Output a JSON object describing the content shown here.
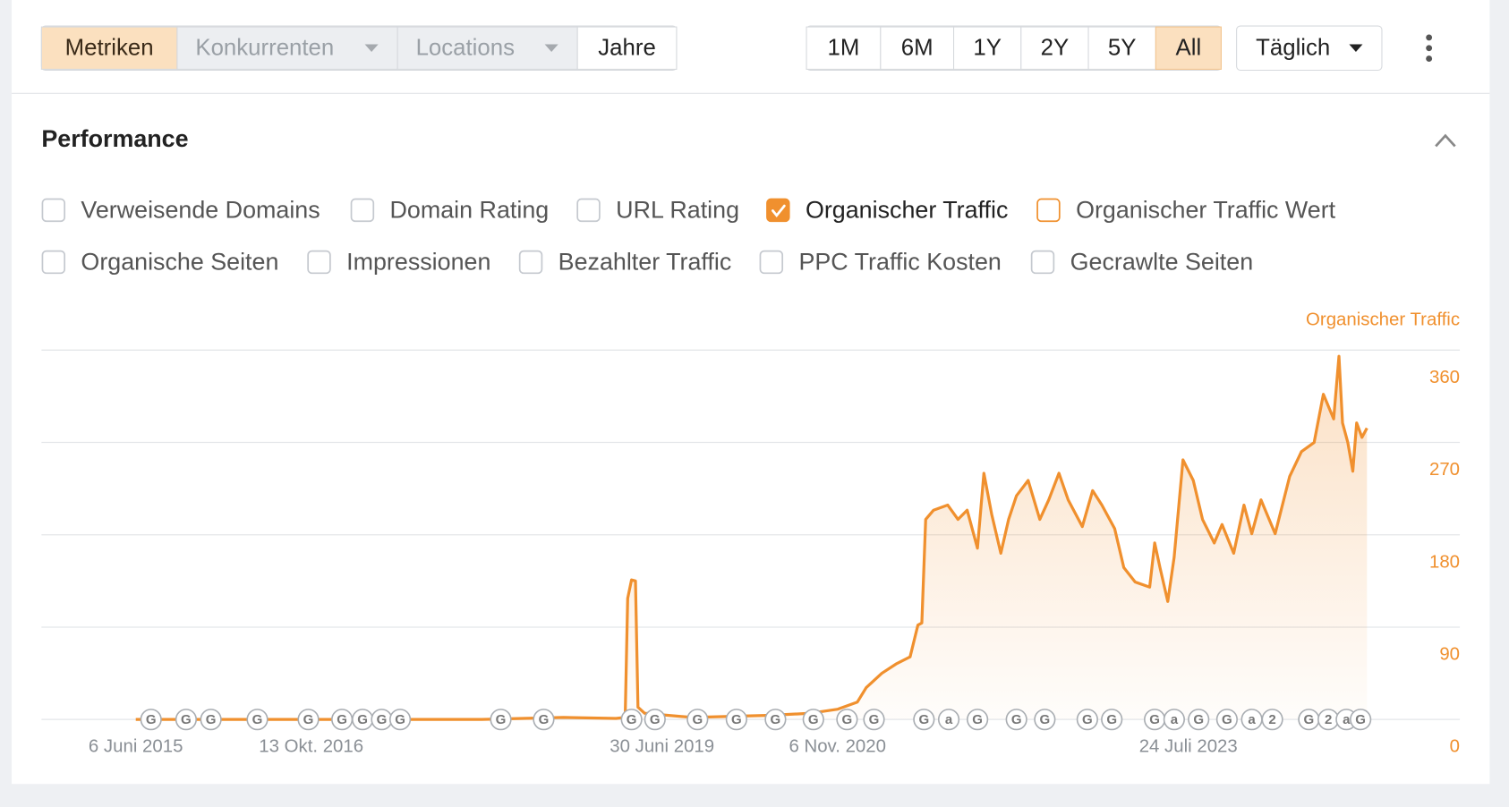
{
  "toolbar": {
    "tabs": [
      "Metriken",
      "Konkurrenten",
      "Locations",
      "Jahre"
    ],
    "ranges": [
      "1M",
      "6M",
      "1Y",
      "2Y",
      "5Y",
      "All"
    ],
    "interval": "Täglich"
  },
  "section": {
    "title": "Performance"
  },
  "metrics": [
    {
      "label": "Verweisende Domains",
      "checked": false
    },
    {
      "label": "Domain Rating",
      "checked": false
    },
    {
      "label": "URL Rating",
      "checked": false
    },
    {
      "label": "Organischer Traffic",
      "checked": true,
      "color": "#f0902e"
    },
    {
      "label": "Organischer Traffic Wert",
      "checked": false,
      "color": "#f0902e"
    },
    {
      "label": "Organische Seiten",
      "checked": false
    },
    {
      "label": "Impressionen",
      "checked": false
    },
    {
      "label": "Bezahlter Traffic",
      "checked": false
    },
    {
      "label": "PPC Traffic Kosten",
      "checked": false
    },
    {
      "label": "Gecrawlte Seiten",
      "checked": false
    }
  ],
  "chart_data": {
    "type": "line",
    "x": [
      "2015-06-06",
      "2018-02-06",
      "2018-09-24",
      "2019-02-20",
      "2019-03-18",
      "2019-03-25",
      "2019-04-05",
      "2019-04-16",
      "2019-04-23",
      "2019-05-12",
      "2019-09-24",
      "2020-05-01",
      "2020-08-19",
      "2020-11-07",
      "2021-01-01",
      "2021-01-26",
      "2021-03-11",
      "2021-04-20",
      "2021-05-30",
      "2021-06-21",
      "2021-07-02",
      "2021-07-13",
      "2021-08-04",
      "2021-09-13",
      "2021-10-12",
      "2021-11-07",
      "2021-12-06",
      "2021-12-24",
      "2022-01-15",
      "2022-02-10",
      "2022-03-04",
      "2022-03-26",
      "2022-04-28",
      "2022-05-31",
      "2022-06-25",
      "2022-07-24",
      "2022-08-19",
      "2022-09-28",
      "2022-10-27",
      "2022-11-22",
      "2022-12-28",
      "2023-01-23",
      "2023-02-24",
      "2023-04-06",
      "2023-04-20",
      "2023-05-05",
      "2023-05-27",
      "2023-06-14",
      "2023-07-09",
      "2023-08-07",
      "2023-09-02",
      "2023-10-05",
      "2023-10-27",
      "2023-11-29",
      "2023-12-28",
      "2024-01-19",
      "2024-02-14",
      "2024-03-25",
      "2024-05-05",
      "2024-06-07",
      "2024-07-13",
      "2024-08-08",
      "2024-09-06",
      "2024-09-21",
      "2024-10-01",
      "2024-10-16",
      "2024-10-30",
      "2024-11-10",
      "2024-11-25",
      "2024-12-09"
    ],
    "series": [
      {
        "name": "Organischer Traffic",
        "color": "#f0902e",
        "values": [
          0,
          0,
          2,
          1,
          2,
          118,
          136,
          135,
          12,
          6,
          2,
          4,
          6,
          10,
          17,
          31,
          45,
          54,
          61,
          92,
          94,
          195,
          204,
          209,
          195,
          204,
          167,
          240,
          200,
          162,
          195,
          218,
          233,
          195,
          214,
          240,
          214,
          188,
          223,
          209,
          186,
          148,
          134,
          129,
          172,
          148,
          115,
          158,
          253,
          233,
          195,
          172,
          190,
          162,
          209,
          181,
          214,
          181,
          237,
          261,
          270,
          317,
          293,
          354,
          289,
          270,
          242,
          289,
          275,
          284
        ]
      }
    ],
    "xlim": [
      "2014-09-13",
      "2025-08-28"
    ],
    "xticks": [
      {
        "value": "2015-06-06",
        "label": "6 Juni 2015"
      },
      {
        "value": "2016-10-13",
        "label": "13 Okt. 2016"
      },
      {
        "value": "2019-06-30",
        "label": "30 Juni 2019"
      },
      {
        "value": "2020-11-06",
        "label": "6 Nov. 2020"
      },
      {
        "value": "2023-07-24",
        "label": "24 Juli 2023"
      }
    ],
    "ylim": [
      0,
      360
    ],
    "yticks": [
      0,
      90,
      180,
      270,
      360
    ],
    "y_axis_side": "right",
    "grid": true,
    "annotations": [
      {
        "x": "2015-07-19",
        "label": "G"
      },
      {
        "x": "2015-10-26",
        "label": "G"
      },
      {
        "x": "2016-01-04",
        "label": "G"
      },
      {
        "x": "2016-05-14",
        "label": "G"
      },
      {
        "x": "2016-10-05",
        "label": "G"
      },
      {
        "x": "2017-01-08",
        "label": "G"
      },
      {
        "x": "2017-03-07",
        "label": "G"
      },
      {
        "x": "2017-04-30",
        "label": "G"
      },
      {
        "x": "2017-06-21",
        "label": "G"
      },
      {
        "x": "2018-04-01",
        "label": "G"
      },
      {
        "x": "2018-07-31",
        "label": "G"
      },
      {
        "x": "2019-04-05",
        "label": "G"
      },
      {
        "x": "2019-06-10",
        "label": "G"
      },
      {
        "x": "2019-10-08",
        "label": "G"
      },
      {
        "x": "2020-01-26",
        "label": "G"
      },
      {
        "x": "2020-05-15",
        "label": "G"
      },
      {
        "x": "2020-08-30",
        "label": "G"
      },
      {
        "x": "2020-12-03",
        "label": "G"
      },
      {
        "x": "2021-02-17",
        "label": "G"
      },
      {
        "x": "2021-07-08",
        "label": "G"
      },
      {
        "x": "2021-09-16",
        "label": "a"
      },
      {
        "x": "2021-12-06",
        "label": "G"
      },
      {
        "x": "2022-03-26",
        "label": "G"
      },
      {
        "x": "2022-06-14",
        "label": "G"
      },
      {
        "x": "2022-10-12",
        "label": "G"
      },
      {
        "x": "2022-12-20",
        "label": "G"
      },
      {
        "x": "2023-04-20",
        "label": "G"
      },
      {
        "x": "2023-06-14",
        "label": "a"
      },
      {
        "x": "2023-08-22",
        "label": "G"
      },
      {
        "x": "2023-11-10",
        "label": "G"
      },
      {
        "x": "2024-01-19",
        "label": "a"
      },
      {
        "x": "2024-03-17",
        "label": "2"
      },
      {
        "x": "2024-06-28",
        "label": "G"
      },
      {
        "x": "2024-08-22",
        "label": "2"
      },
      {
        "x": "2024-10-12",
        "label": "a"
      },
      {
        "x": "2024-11-21",
        "label": "G"
      }
    ]
  }
}
